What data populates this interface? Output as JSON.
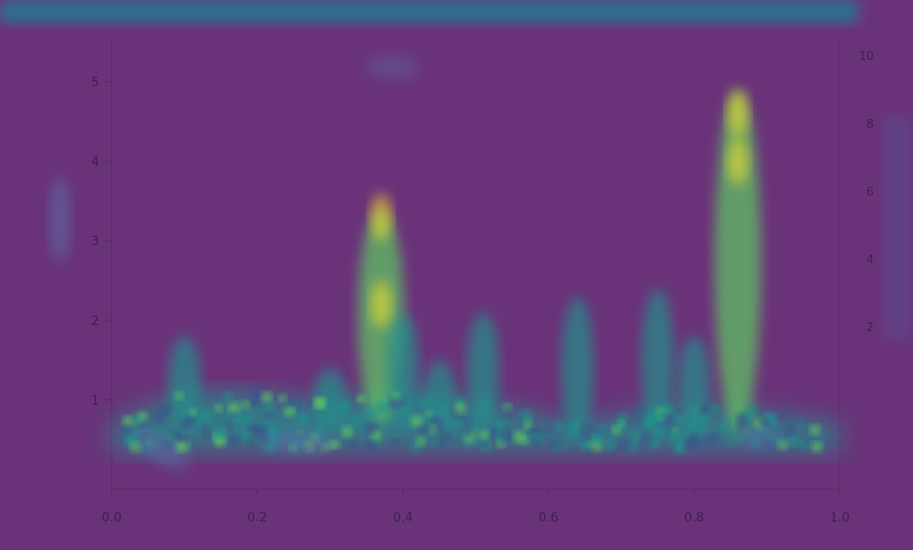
{
  "chart_data": {
    "type": "heatmap",
    "title": "",
    "xlabel": "",
    "ylabel": "",
    "xlim": [
      0.0,
      1.0
    ],
    "ylim": [
      0,
      5
    ],
    "x_ticks": [
      "0.0",
      "0.2",
      "0.4",
      "0.6",
      "0.8",
      "1.0"
    ],
    "y_ticks": [
      "1",
      "2",
      "3",
      "4",
      "5"
    ],
    "colorbar_ticks": [
      "2",
      "4",
      "6",
      "8",
      "10"
    ],
    "colormap": [
      "#440154",
      "#3b528b",
      "#21918c",
      "#5ec962",
      "#fde725"
    ],
    "grid": false,
    "background": "#6a3379",
    "intensity_profile": [
      {
        "x": 0.0,
        "baseline": 0.6,
        "peak": 0.8
      },
      {
        "x": 0.05,
        "baseline": 0.8,
        "peak": 1.2
      },
      {
        "x": 0.1,
        "baseline": 1.0,
        "peak": 1.7
      },
      {
        "x": 0.15,
        "baseline": 1.0,
        "peak": 1.3
      },
      {
        "x": 0.2,
        "baseline": 1.0,
        "peak": 1.2
      },
      {
        "x": 0.25,
        "baseline": 0.9,
        "peak": 1.1
      },
      {
        "x": 0.3,
        "baseline": 0.9,
        "peak": 1.3
      },
      {
        "x": 0.37,
        "baseline": 1.0,
        "peak": 3.3
      },
      {
        "x": 0.4,
        "baseline": 1.0,
        "peak": 2.0
      },
      {
        "x": 0.45,
        "baseline": 0.9,
        "peak": 1.4
      },
      {
        "x": 0.51,
        "baseline": 0.9,
        "peak": 2.0
      },
      {
        "x": 0.58,
        "baseline": 0.7,
        "peak": 0.9
      },
      {
        "x": 0.64,
        "baseline": 0.6,
        "peak": 2.2
      },
      {
        "x": 0.7,
        "baseline": 0.7,
        "peak": 1.0
      },
      {
        "x": 0.75,
        "baseline": 0.8,
        "peak": 2.3
      },
      {
        "x": 0.8,
        "baseline": 0.8,
        "peak": 1.7
      },
      {
        "x": 0.86,
        "baseline": 0.8,
        "peak": 4.8
      },
      {
        "x": 0.92,
        "baseline": 0.7,
        "peak": 1.0
      },
      {
        "x": 1.0,
        "baseline": 0.6,
        "peak": 0.8
      }
    ]
  }
}
